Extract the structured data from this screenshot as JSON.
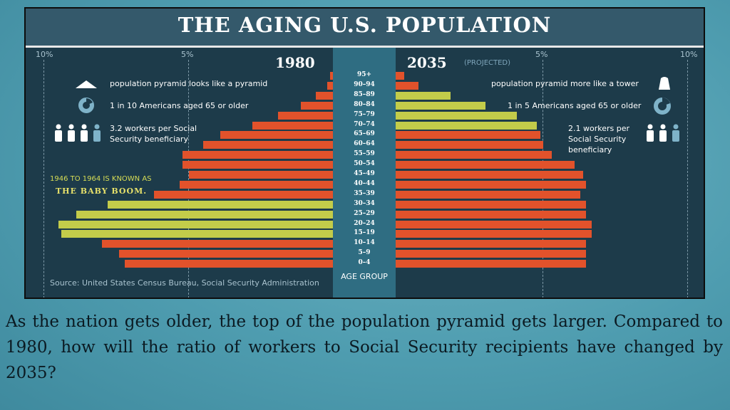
{
  "chart_data": {
    "type": "bar",
    "title": "THE AGING U.S. POPULATION",
    "subtype": "population-pyramid",
    "x_unit": "percent of population",
    "x_ticks": [
      "10%",
      "5%",
      "5%",
      "10%"
    ],
    "xlim": [
      0,
      10
    ],
    "left_label": "1980",
    "right_label": "2035",
    "right_note": "(PROJECTED)",
    "categories": [
      "95+",
      "90–94",
      "85–89",
      "80–84",
      "75–79",
      "70–74",
      "65–69",
      "60–64",
      "55–59",
      "50–54",
      "45–49",
      "40–44",
      "35–39",
      "30–34",
      "25–29",
      "20–24",
      "15–19",
      "10–14",
      "5–9",
      "0–4"
    ],
    "series": [
      {
        "name": "1980",
        "values": [
          0.1,
          0.2,
          0.6,
          1.1,
          1.9,
          2.8,
          3.9,
          4.5,
          5.2,
          5.2,
          5.0,
          5.3,
          6.2,
          7.8,
          8.9,
          9.5,
          9.4,
          8.0,
          7.4,
          7.2
        ]
      },
      {
        "name": "2035",
        "values": [
          0.3,
          0.8,
          1.9,
          3.1,
          4.2,
          4.9,
          5.0,
          5.1,
          5.4,
          6.2,
          6.5,
          6.6,
          6.4,
          6.6,
          6.6,
          6.8,
          6.8,
          6.6,
          6.6,
          6.6
        ]
      }
    ],
    "highlight_1980": [
      "15–19",
      "20–24",
      "25–29",
      "30–34"
    ],
    "highlight_2035": [
      "70–74",
      "75–79",
      "80–84",
      "85–89"
    ],
    "colors": {
      "base": "#e2522b",
      "highlight": "#c3cc4a"
    },
    "xlabel": "AGE GROUP",
    "source": "Source: United States Census Bureau, Social Security Administration"
  },
  "notes_1980": {
    "pyramid": "population pyramid looks like a pyramid",
    "elderly": "1 in 10 Americans aged 65 or older",
    "workers_line1": "3.2 workers per Social",
    "workers_line2": "Security beneficiary"
  },
  "notes_2035": {
    "pyramid": "population pyramid more like a tower",
    "elderly": "1 in 5 Americans aged 65 or older",
    "workers_line1": "2.1 workers per",
    "workers_line2": "Social Security",
    "workers_line3": "beneficiary"
  },
  "baby_boom": {
    "line1": "1946 TO 1964 IS KNOWN AS",
    "line2": "THE BABY BOOM."
  },
  "question": "As the nation gets older, the top of the population pyramid gets larger. Compared to 1980, how will the ratio of workers to Social Security recipients have changed by 2035?"
}
